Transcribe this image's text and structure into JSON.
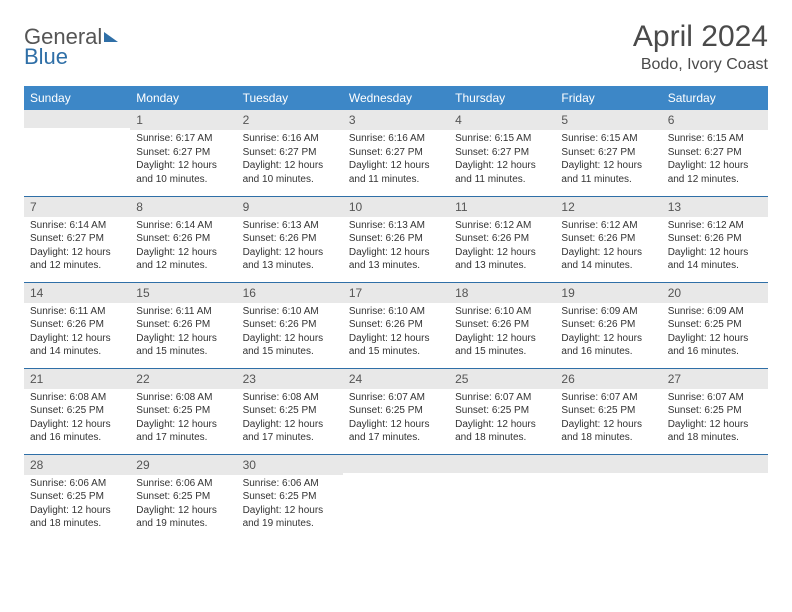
{
  "brand": {
    "part1": "General",
    "part2": "Blue"
  },
  "title": "April 2024",
  "location": "Bodo, Ivory Coast",
  "columns": [
    "Sunday",
    "Monday",
    "Tuesday",
    "Wednesday",
    "Thursday",
    "Friday",
    "Saturday"
  ],
  "colors": {
    "header_bg": "#3d87c7",
    "header_fg": "#ffffff",
    "daynum_bg": "#e8e8e8",
    "rule": "#2f6fa7",
    "text": "#333333",
    "title": "#4a4a4a"
  },
  "weeks": [
    [
      null,
      {
        "n": "1",
        "sr": "6:17 AM",
        "ss": "6:27 PM",
        "dlh": "12",
        "dlm": "10"
      },
      {
        "n": "2",
        "sr": "6:16 AM",
        "ss": "6:27 PM",
        "dlh": "12",
        "dlm": "10"
      },
      {
        "n": "3",
        "sr": "6:16 AM",
        "ss": "6:27 PM",
        "dlh": "12",
        "dlm": "11"
      },
      {
        "n": "4",
        "sr": "6:15 AM",
        "ss": "6:27 PM",
        "dlh": "12",
        "dlm": "11"
      },
      {
        "n": "5",
        "sr": "6:15 AM",
        "ss": "6:27 PM",
        "dlh": "12",
        "dlm": "11"
      },
      {
        "n": "6",
        "sr": "6:15 AM",
        "ss": "6:27 PM",
        "dlh": "12",
        "dlm": "12"
      }
    ],
    [
      {
        "n": "7",
        "sr": "6:14 AM",
        "ss": "6:27 PM",
        "dlh": "12",
        "dlm": "12"
      },
      {
        "n": "8",
        "sr": "6:14 AM",
        "ss": "6:26 PM",
        "dlh": "12",
        "dlm": "12"
      },
      {
        "n": "9",
        "sr": "6:13 AM",
        "ss": "6:26 PM",
        "dlh": "12",
        "dlm": "13"
      },
      {
        "n": "10",
        "sr": "6:13 AM",
        "ss": "6:26 PM",
        "dlh": "12",
        "dlm": "13"
      },
      {
        "n": "11",
        "sr": "6:12 AM",
        "ss": "6:26 PM",
        "dlh": "12",
        "dlm": "13"
      },
      {
        "n": "12",
        "sr": "6:12 AM",
        "ss": "6:26 PM",
        "dlh": "12",
        "dlm": "14"
      },
      {
        "n": "13",
        "sr": "6:12 AM",
        "ss": "6:26 PM",
        "dlh": "12",
        "dlm": "14"
      }
    ],
    [
      {
        "n": "14",
        "sr": "6:11 AM",
        "ss": "6:26 PM",
        "dlh": "12",
        "dlm": "14"
      },
      {
        "n": "15",
        "sr": "6:11 AM",
        "ss": "6:26 PM",
        "dlh": "12",
        "dlm": "15"
      },
      {
        "n": "16",
        "sr": "6:10 AM",
        "ss": "6:26 PM",
        "dlh": "12",
        "dlm": "15"
      },
      {
        "n": "17",
        "sr": "6:10 AM",
        "ss": "6:26 PM",
        "dlh": "12",
        "dlm": "15"
      },
      {
        "n": "18",
        "sr": "6:10 AM",
        "ss": "6:26 PM",
        "dlh": "12",
        "dlm": "15"
      },
      {
        "n": "19",
        "sr": "6:09 AM",
        "ss": "6:26 PM",
        "dlh": "12",
        "dlm": "16"
      },
      {
        "n": "20",
        "sr": "6:09 AM",
        "ss": "6:25 PM",
        "dlh": "12",
        "dlm": "16"
      }
    ],
    [
      {
        "n": "21",
        "sr": "6:08 AM",
        "ss": "6:25 PM",
        "dlh": "12",
        "dlm": "16"
      },
      {
        "n": "22",
        "sr": "6:08 AM",
        "ss": "6:25 PM",
        "dlh": "12",
        "dlm": "17"
      },
      {
        "n": "23",
        "sr": "6:08 AM",
        "ss": "6:25 PM",
        "dlh": "12",
        "dlm": "17"
      },
      {
        "n": "24",
        "sr": "6:07 AM",
        "ss": "6:25 PM",
        "dlh": "12",
        "dlm": "17"
      },
      {
        "n": "25",
        "sr": "6:07 AM",
        "ss": "6:25 PM",
        "dlh": "12",
        "dlm": "18"
      },
      {
        "n": "26",
        "sr": "6:07 AM",
        "ss": "6:25 PM",
        "dlh": "12",
        "dlm": "18"
      },
      {
        "n": "27",
        "sr": "6:07 AM",
        "ss": "6:25 PM",
        "dlh": "12",
        "dlm": "18"
      }
    ],
    [
      {
        "n": "28",
        "sr": "6:06 AM",
        "ss": "6:25 PM",
        "dlh": "12",
        "dlm": "18"
      },
      {
        "n": "29",
        "sr": "6:06 AM",
        "ss": "6:25 PM",
        "dlh": "12",
        "dlm": "19"
      },
      {
        "n": "30",
        "sr": "6:06 AM",
        "ss": "6:25 PM",
        "dlh": "12",
        "dlm": "19"
      },
      null,
      null,
      null,
      null
    ]
  ],
  "labels": {
    "sunrise": "Sunrise:",
    "sunset": "Sunset:",
    "daylight": "Daylight:",
    "hours_word": "hours",
    "and_word": "and",
    "minutes_word": "minutes."
  }
}
